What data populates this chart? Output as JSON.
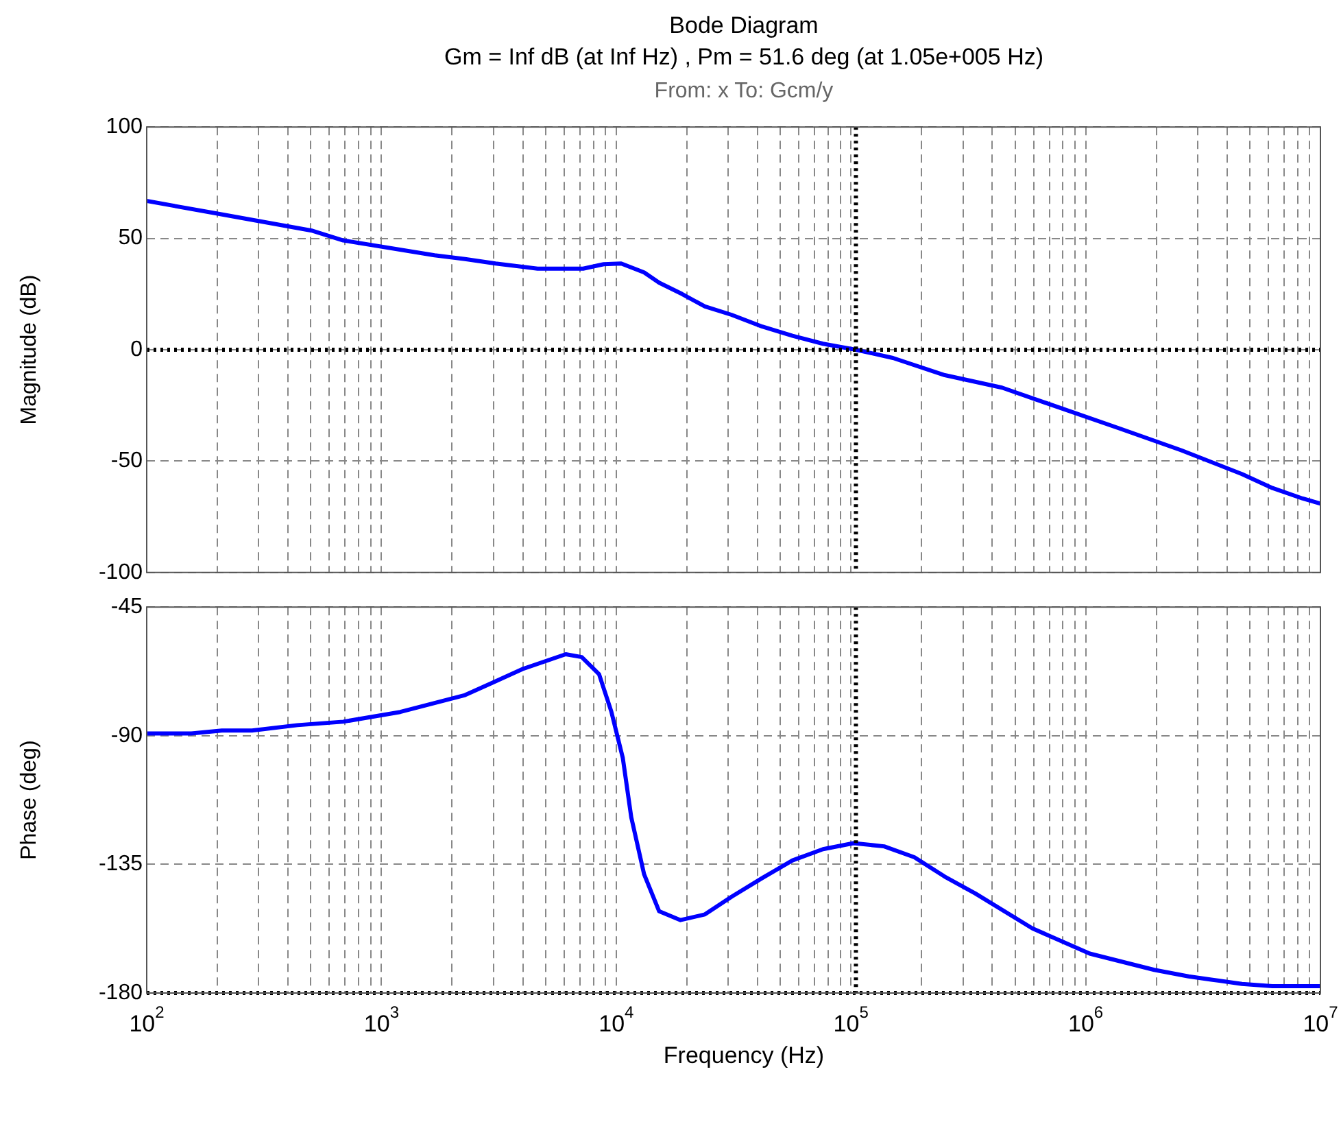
{
  "chart_data": [
    {
      "type": "line",
      "title": "Bode Diagram",
      "subtitle": "Gm = Inf dB (at Inf Hz) ,  Pm = 51.6 deg (at 1.05e+005 Hz)",
      "annotations": [
        "From: x  To: Gcm/y"
      ],
      "ylabel": "Magnitude (dB)",
      "log": "x",
      "grid": true,
      "legend": false,
      "tick_labels": "y",
      "x": [
        100,
        193,
        509,
        687,
        1683,
        2270,
        3062,
        4624,
        7228,
        8851,
        10500,
        13150,
        15240,
        19100,
        23880,
        30970,
        41880,
        56360,
        76030,
        105000,
        151000,
        251000,
        440000,
        773000,
        1400000,
        2550000,
        4630000,
        6250000,
        8410000,
        10000000
      ],
      "series": [
        {
          "color": "#0000ff",
          "values": [
            66.8,
            61.4,
            53.4,
            49.1,
            42.4,
            40.7,
            38.7,
            36.4,
            36.4,
            38.4,
            38.7,
            34.7,
            30.1,
            25.0,
            19.4,
            15.7,
            10.4,
            6.3,
            2.7,
            0,
            -3.7,
            -11.4,
            -17.0,
            -26.0,
            -35.4,
            -45.1,
            -55.8,
            -62.1,
            -66.8,
            -69.1
          ]
        }
      ],
      "xlim": [
        100,
        10000000
      ],
      "xticks": [
        {
          "value": 100,
          "label": null
        },
        {
          "value": 200,
          "label": null
        },
        {
          "value": 300,
          "label": null
        },
        {
          "value": 400,
          "label": null
        },
        {
          "value": 500,
          "label": null
        },
        {
          "value": 600,
          "label": null
        },
        {
          "value": 700,
          "label": null
        },
        {
          "value": 800,
          "label": null
        },
        {
          "value": 900,
          "label": null
        },
        {
          "value": 1000,
          "label": null
        },
        {
          "value": 2000,
          "label": null
        },
        {
          "value": 3000,
          "label": null
        },
        {
          "value": 4000,
          "label": null
        },
        {
          "value": 5000,
          "label": null
        },
        {
          "value": 6000,
          "label": null
        },
        {
          "value": 7000,
          "label": null
        },
        {
          "value": 8000,
          "label": null
        },
        {
          "value": 9000,
          "label": null
        },
        {
          "value": 10000,
          "label": null
        },
        {
          "value": 20000,
          "label": null
        },
        {
          "value": 30000,
          "label": null
        },
        {
          "value": 40000,
          "label": null
        },
        {
          "value": 50000,
          "label": null
        },
        {
          "value": 60000,
          "label": null
        },
        {
          "value": 70000,
          "label": null
        },
        {
          "value": 80000,
          "label": null
        },
        {
          "value": 90000,
          "label": null
        },
        {
          "value": 100000,
          "label": null
        },
        {
          "value": 200000,
          "label": null
        },
        {
          "value": 300000,
          "label": null
        },
        {
          "value": 400000,
          "label": null
        },
        {
          "value": 500000,
          "label": null
        },
        {
          "value": 600000,
          "label": null
        },
        {
          "value": 700000,
          "label": null
        },
        {
          "value": 800000,
          "label": null
        },
        {
          "value": 900000,
          "label": null
        },
        {
          "value": 1000000,
          "label": null
        },
        {
          "value": 2000000,
          "label": null
        },
        {
          "value": 3000000,
          "label": null
        },
        {
          "value": 4000000,
          "label": null
        },
        {
          "value": 5000000,
          "label": null
        },
        {
          "value": 6000000,
          "label": null
        },
        {
          "value": 7000000,
          "label": null
        },
        {
          "value": 8000000,
          "label": null
        },
        {
          "value": 9000000,
          "label": null
        },
        {
          "value": 10000000,
          "label": null
        }
      ],
      "ylim": [
        -100,
        100
      ],
      "yticks": [
        -100,
        -50,
        0,
        50,
        100
      ],
      "ref_lines": [
        {
          "axis": "y",
          "value": 0,
          "color": "#000000",
          "line_style": "dotted"
        },
        {
          "axis": "x",
          "value": 105000,
          "color": "#000000",
          "line_style": "dotted"
        }
      ]
    },
    {
      "type": "line",
      "xlabel": "Frequency  (Hz)",
      "ylabel": "Phase (deg)",
      "log": "x",
      "grid": true,
      "legend": false,
      "x": [
        100,
        155,
        209,
        281,
        439,
        687,
        1202,
        2270,
        2951,
        3981,
        6095,
        7129,
        8453,
        9528,
        10670,
        11590,
        13150,
        15240,
        18790,
        23880,
        31050,
        41880,
        56360,
        76030,
        102600,
        138400,
        186200,
        251000,
        338800,
        592900,
        1040000,
        1959000,
        2742000,
        3428000,
        4630000,
        6237000,
        10000000
      ],
      "series": [
        {
          "color": "#0000ff",
          "values": [
            -89.2,
            -89.2,
            -88.2,
            -88.2,
            -86.3,
            -85.1,
            -81.7,
            -75.8,
            -71.6,
            -66.7,
            -61.5,
            -62.5,
            -68.5,
            -81.5,
            -97.8,
            -118.5,
            -138.5,
            -151.4,
            -154.5,
            -152.5,
            -146.3,
            -139.8,
            -133.6,
            -129.7,
            -127.6,
            -128.7,
            -132.5,
            -139.3,
            -145.2,
            -157.4,
            -166.2,
            -171.9,
            -174.2,
            -175.3,
            -176.8,
            -177.6,
            -177.6
          ]
        }
      ],
      "xlim": [
        100,
        10000000
      ],
      "xticks": [
        {
          "value": 100,
          "label": "10$^{2}$"
        },
        {
          "value": 200,
          "label": null
        },
        {
          "value": 300,
          "label": null
        },
        {
          "value": 400,
          "label": null
        },
        {
          "value": 500,
          "label": null
        },
        {
          "value": 600,
          "label": null
        },
        {
          "value": 700,
          "label": null
        },
        {
          "value": 800,
          "label": null
        },
        {
          "value": 900,
          "label": null
        },
        {
          "value": 1000,
          "label": "10$^{3}$"
        },
        {
          "value": 2000,
          "label": null
        },
        {
          "value": 3000,
          "label": null
        },
        {
          "value": 4000,
          "label": null
        },
        {
          "value": 5000,
          "label": null
        },
        {
          "value": 6000,
          "label": null
        },
        {
          "value": 7000,
          "label": null
        },
        {
          "value": 8000,
          "label": null
        },
        {
          "value": 9000,
          "label": null
        },
        {
          "value": 10000,
          "label": "10$^{4}$"
        },
        {
          "value": 20000,
          "label": null
        },
        {
          "value": 30000,
          "label": null
        },
        {
          "value": 40000,
          "label": null
        },
        {
          "value": 50000,
          "label": null
        },
        {
          "value": 60000,
          "label": null
        },
        {
          "value": 70000,
          "label": null
        },
        {
          "value": 80000,
          "label": null
        },
        {
          "value": 90000,
          "label": null
        },
        {
          "value": 100000,
          "label": "10$^{5}$"
        },
        {
          "value": 200000,
          "label": null
        },
        {
          "value": 300000,
          "label": null
        },
        {
          "value": 400000,
          "label": null
        },
        {
          "value": 500000,
          "label": null
        },
        {
          "value": 600000,
          "label": null
        },
        {
          "value": 700000,
          "label": null
        },
        {
          "value": 800000,
          "label": null
        },
        {
          "value": 900000,
          "label": null
        },
        {
          "value": 1000000,
          "label": "10$^{6}$"
        },
        {
          "value": 2000000,
          "label": null
        },
        {
          "value": 3000000,
          "label": null
        },
        {
          "value": 4000000,
          "label": null
        },
        {
          "value": 5000000,
          "label": null
        },
        {
          "value": 6000000,
          "label": null
        },
        {
          "value": 7000000,
          "label": null
        },
        {
          "value": 8000000,
          "label": null
        },
        {
          "value": 9000000,
          "label": null
        },
        {
          "value": 10000000,
          "label": "10$^{7}$"
        }
      ],
      "ylim": [
        -180,
        -45
      ],
      "yticks": [
        -180,
        -135,
        -90,
        -45
      ],
      "ref_lines": [
        {
          "axis": "y",
          "value": -180,
          "color": "#000000",
          "line_style": "dotted"
        },
        {
          "axis": "x",
          "value": 105000,
          "color": "#000000",
          "line_style": "dotted"
        }
      ]
    }
  ]
}
